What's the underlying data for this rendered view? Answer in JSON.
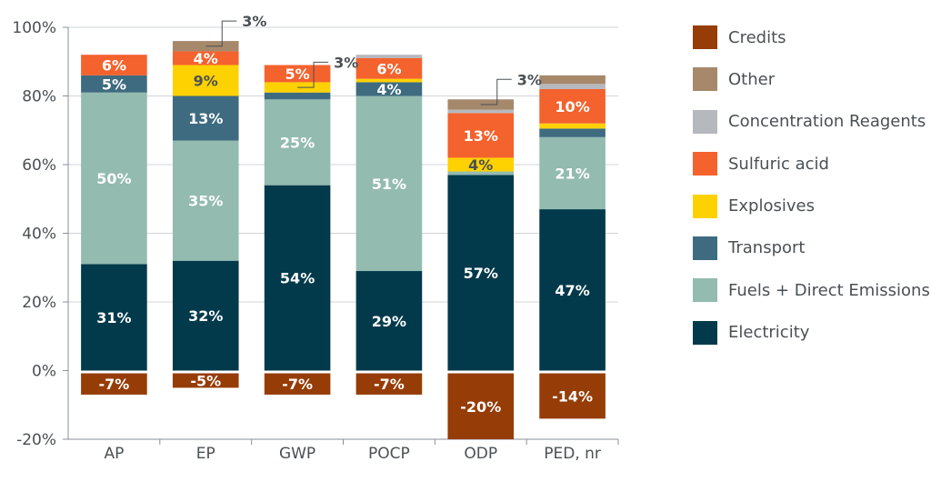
{
  "colors": {
    "Electricity": "#023a4b",
    "Fuels + Direct Emissions": "#93bbb0",
    "Transport": "#3e6b80",
    "Explosives": "#fed100",
    "Sulfuric acid": "#f4622e",
    "Concentration Reagents": "#b5b9bd",
    "Other": "#a6886b",
    "Credits": "#963c06",
    "axis": "#8a9199",
    "grid": "#d2d5d8",
    "label_dark": "#ffffff",
    "label_light": "#4a5054"
  },
  "legend": [
    "Credits",
    "Other",
    "Concentration Reagents",
    "Sulfuric acid",
    "Explosives",
    "Transport",
    "Fuels + Direct Emissions",
    "Electricity"
  ],
  "chart_data": {
    "type": "bar",
    "stacked": true,
    "categories": [
      "AP",
      "EP",
      "GWP",
      "POCP",
      "ODP",
      "PED, nr"
    ],
    "ylim": [
      -20,
      100
    ],
    "yticks": [
      -20,
      0,
      20,
      40,
      60,
      80,
      100
    ],
    "ytick_labels": [
      "-20%",
      "0%",
      "20%",
      "40%",
      "60%",
      "80%",
      "100%"
    ],
    "grid": true,
    "legend_position": "right",
    "series": [
      {
        "name": "Electricity",
        "values": [
          31,
          32,
          54,
          29,
          57,
          47
        ],
        "labels": [
          "31%",
          "32%",
          "54%",
          "29%",
          "57%",
          "47%"
        ]
      },
      {
        "name": "Fuels + Direct Emissions",
        "values": [
          50,
          35,
          25,
          51,
          1,
          21
        ],
        "labels": [
          "50%",
          "35%",
          "25%",
          "51%",
          "",
          "21%"
        ]
      },
      {
        "name": "Transport",
        "values": [
          5,
          13,
          2,
          4,
          0,
          2.5
        ],
        "labels": [
          "5%",
          "13%",
          "",
          "4%",
          "",
          ""
        ]
      },
      {
        "name": "Explosives",
        "values": [
          0,
          9,
          3,
          1,
          4,
          1.5
        ],
        "labels": [
          "",
          "9%",
          "",
          "",
          "4%",
          ""
        ]
      },
      {
        "name": "Sulfuric acid",
        "values": [
          6,
          4,
          5,
          6,
          13,
          10
        ],
        "labels": [
          "6%",
          "4%",
          "5%",
          "6%",
          "13%",
          "10%"
        ]
      },
      {
        "name": "Concentration Reagents",
        "values": [
          0,
          0,
          0,
          1,
          1,
          1.5
        ],
        "labels": [
          "",
          "",
          "",
          "",
          "",
          ""
        ]
      },
      {
        "name": "Other",
        "values": [
          0,
          3,
          0,
          0,
          3,
          2.5
        ],
        "labels": [
          "",
          "",
          "",
          "",
          "",
          ""
        ]
      },
      {
        "name": "Credits",
        "values": [
          -7,
          -5,
          -7,
          -7,
          -20,
          -14
        ],
        "labels": [
          "-7%",
          "-5%",
          "-7%",
          "-7%",
          "-20%",
          "-14%"
        ]
      }
    ],
    "annotations": [
      {
        "category": "EP",
        "series": "Other",
        "text": "3%"
      },
      {
        "category": "GWP",
        "series": "Explosives",
        "text": "3%"
      },
      {
        "category": "ODP",
        "series": "Other",
        "text": "3%"
      }
    ]
  }
}
